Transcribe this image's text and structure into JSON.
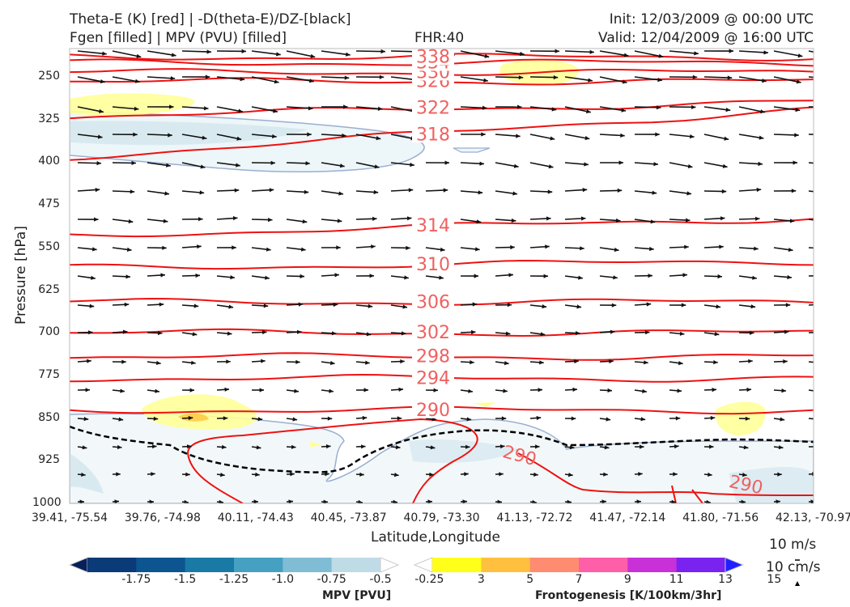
{
  "header": {
    "title_line1": "Theta-E (K) [red] | -D(theta-E)/DZ-[black]",
    "title_line2": "Fgen [filled] | MPV (PVU) [filled]",
    "fhr": "FHR:40",
    "init": "Init: 12/03/2009 @ 00:00 UTC",
    "valid": "Valid: 12/04/2009 @ 16:00 UTC"
  },
  "chart_data": {
    "type": "cross-section",
    "xlabel": "Latitude,Longitude",
    "ylabel": "Pressure [hPa]",
    "ylim": [
      1000,
      200
    ],
    "x_ticks": [
      "39.41, -75.54",
      "39.76, -74.98",
      "40.11, -74.43",
      "40.45, -73.87",
      "40.79, -73.30",
      "41.13, -72.72",
      "41.47, -72.14",
      "41.80, -71.56",
      "42.13, -70.97"
    ],
    "y_ticks": [
      250,
      325,
      400,
      475,
      550,
      625,
      700,
      775,
      850,
      925,
      1000
    ],
    "theta_e_contours": [
      {
        "value": 290,
        "label": "290",
        "pressure": 836
      },
      {
        "value": 294,
        "label": "294",
        "pressure": 780
      },
      {
        "value": 298,
        "label": "298",
        "pressure": 742
      },
      {
        "value": 302,
        "label": "302",
        "pressure": 700
      },
      {
        "value": 306,
        "label": "306",
        "pressure": 646
      },
      {
        "value": 310,
        "label": "310",
        "pressure": 580
      },
      {
        "value": 314,
        "label": "314",
        "pressure": 512
      },
      {
        "value": 318,
        "label": "318",
        "pressure": 360
      },
      {
        "value": 322,
        "label": "322",
        "pressure": 305
      },
      {
        "value": 326,
        "label": "326",
        "pressure": 258
      },
      {
        "value": 330,
        "label": "330",
        "pressure": 242
      },
      {
        "value": 334,
        "label": "334",
        "pressure": 225
      },
      {
        "value": 338,
        "label": "338",
        "pressure": 215
      }
    ],
    "low_level_290_labels": [
      "290",
      "290"
    ],
    "wind_reference": {
      "u": "10 m/s",
      "w": "10 cm/s"
    },
    "mpv_colorbar": {
      "label": "MPV [PVU]",
      "ticks": [
        "-1.75",
        "-1.5",
        "-1.25",
        "-1.0",
        "-0.75",
        "-0.5",
        "-0.25"
      ],
      "colors": [
        "#08205a",
        "#0a3a78",
        "#0d5590",
        "#1a7aa6",
        "#45a0c2",
        "#80bdd4",
        "#bfdce6",
        "#ffffff"
      ]
    },
    "fgen_colorbar": {
      "label": "Frontogenesis [K/100km/3hr]",
      "ticks": [
        "3",
        "5",
        "7",
        "9",
        "11",
        "13",
        "15"
      ],
      "colors": [
        "#ffffff",
        "#ffff1a",
        "#ffc040",
        "#ff8c70",
        "#ff5fa8",
        "#c830d8",
        "#7a22f0",
        "#2020ff"
      ]
    }
  }
}
